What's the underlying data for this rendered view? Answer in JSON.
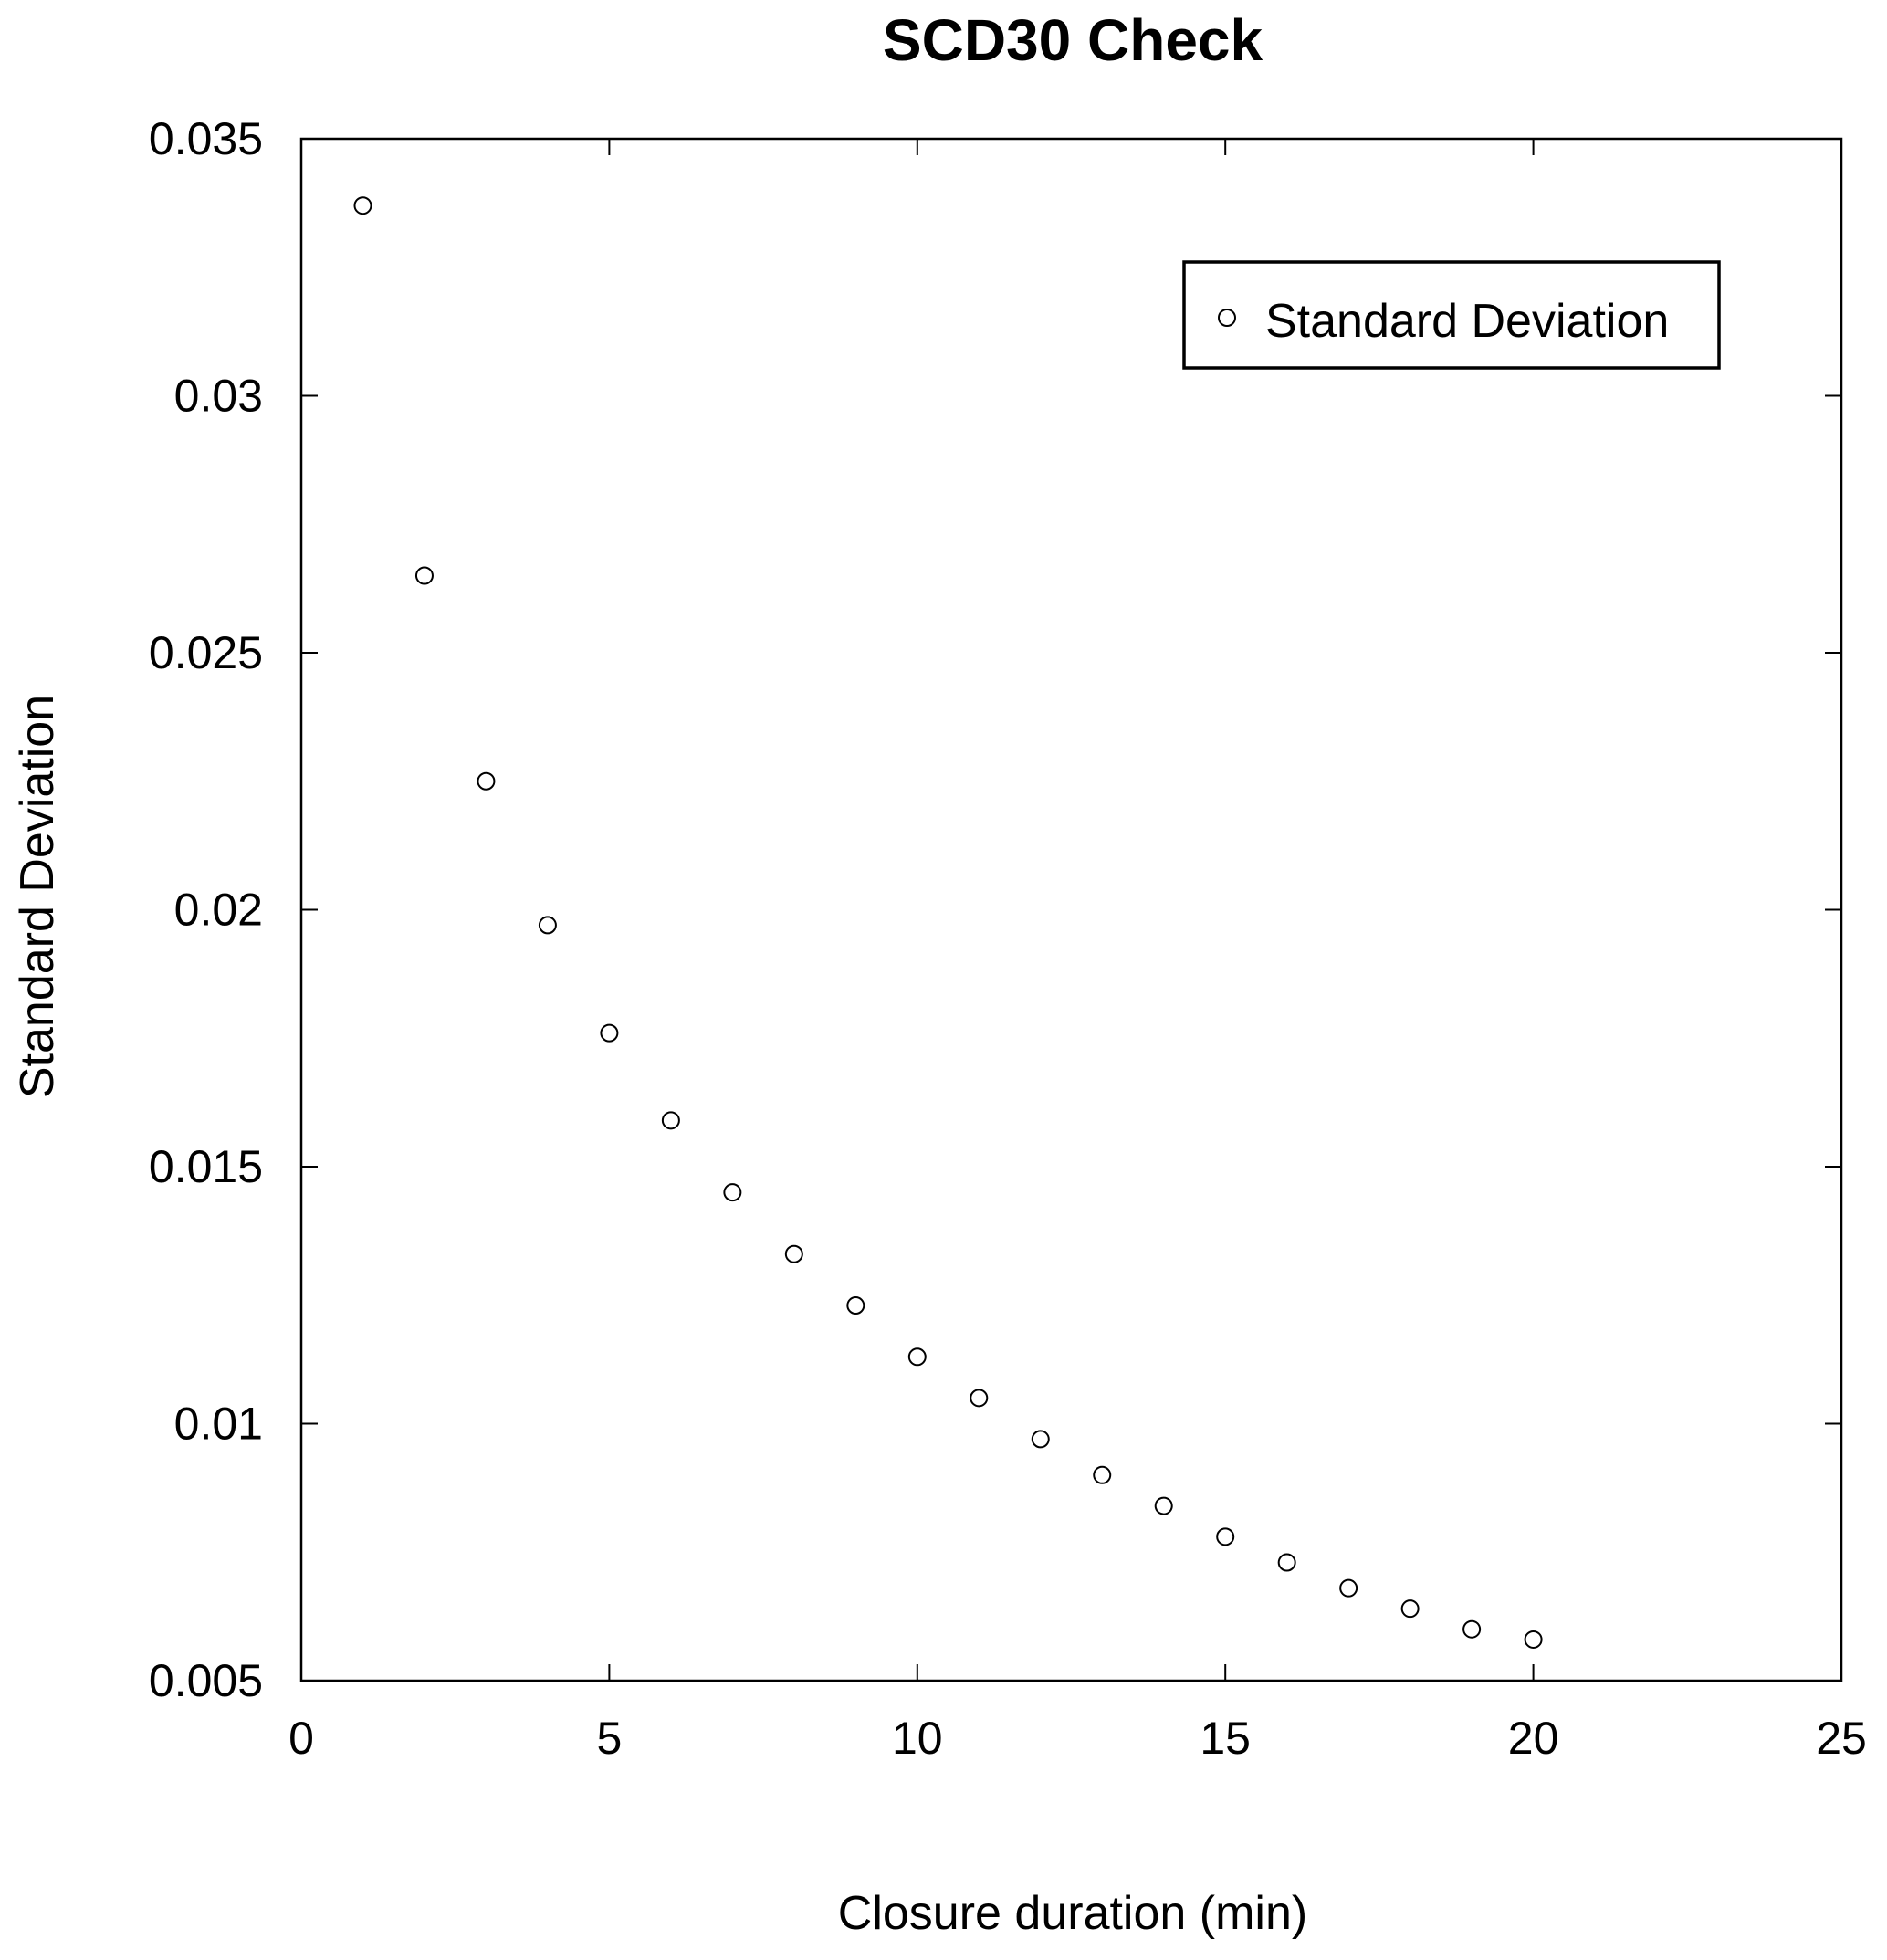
{
  "chart_data": {
    "type": "scatter",
    "title": "SCD30 Check",
    "xlabel": "Closure duration (min)",
    "ylabel": "Standard Deviation",
    "xlim": [
      0,
      25
    ],
    "ylim": [
      0.005,
      0.035
    ],
    "x_ticks": [
      0,
      5,
      10,
      15,
      20,
      25
    ],
    "x_tick_labels": [
      "0",
      "5",
      "10",
      "15",
      "20",
      "25"
    ],
    "y_ticks": [
      0.005,
      0.01,
      0.015,
      0.02,
      0.025,
      0.03,
      0.035
    ],
    "y_tick_labels": [
      "0.005",
      "0.01",
      "0.015",
      "0.02",
      "0.025",
      "0.03",
      "0.035"
    ],
    "grid": false,
    "legend_position": "top-right",
    "marker": "open-circle",
    "series": [
      {
        "name": "Standard Deviation",
        "x": [
          1,
          2,
          3,
          4,
          5,
          6,
          7,
          8,
          9,
          10,
          11,
          12,
          13,
          14,
          15,
          16,
          17,
          18,
          19,
          20
        ],
        "y": [
          0.0337,
          0.0265,
          0.0225,
          0.0197,
          0.0176,
          0.0159,
          0.0145,
          0.0133,
          0.0123,
          0.0113,
          0.0105,
          0.0097,
          0.009,
          0.0084,
          0.0078,
          0.0073,
          0.0068,
          0.0064,
          0.006,
          0.0058
        ]
      }
    ]
  },
  "colors": {
    "axes": "#000000",
    "marker_stroke": "#000000",
    "background": "#ffffff"
  }
}
